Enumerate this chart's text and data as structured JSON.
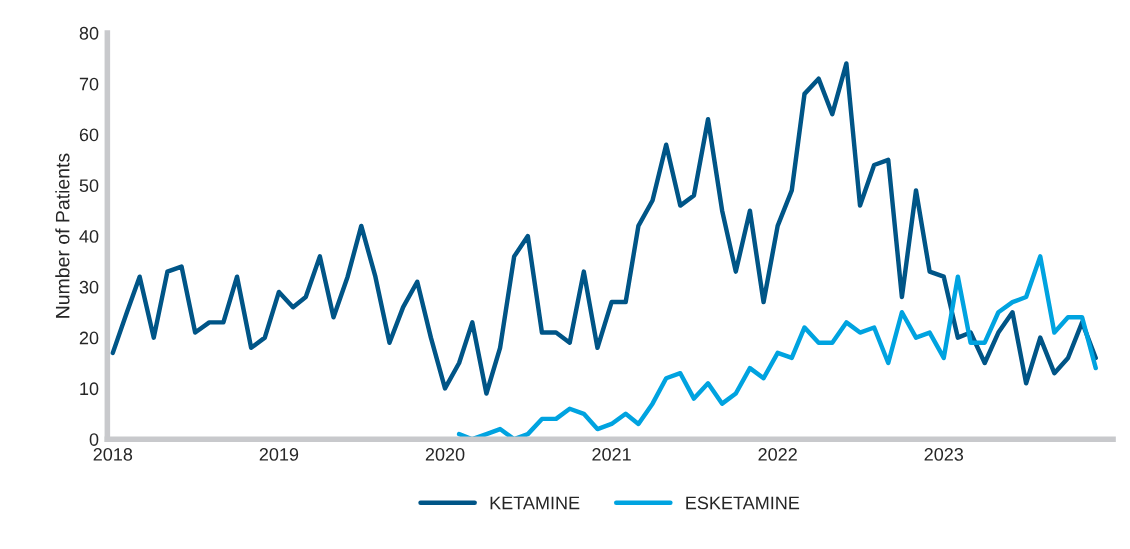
{
  "chart_data": {
    "type": "line",
    "ylabel": "Number of Patients",
    "x": [
      "2018-01",
      "2018-02",
      "2018-03",
      "2018-04",
      "2018-05",
      "2018-06",
      "2018-07",
      "2018-08",
      "2018-09",
      "2018-10",
      "2018-11",
      "2018-12",
      "2019-01",
      "2019-02",
      "2019-03",
      "2019-04",
      "2019-05",
      "2019-06",
      "2019-07",
      "2019-08",
      "2019-09",
      "2019-10",
      "2019-11",
      "2019-12",
      "2020-01",
      "2020-02",
      "2020-03",
      "2020-04",
      "2020-05",
      "2020-06",
      "2020-07",
      "2020-08",
      "2020-09",
      "2020-10",
      "2020-11",
      "2020-12",
      "2021-01",
      "2021-02",
      "2021-03",
      "2021-04",
      "2021-05",
      "2021-06",
      "2021-07",
      "2021-08",
      "2021-09",
      "2021-10",
      "2021-11",
      "2021-12",
      "2022-01",
      "2022-02",
      "2022-03",
      "2022-04",
      "2022-05",
      "2022-06",
      "2022-07",
      "2022-08",
      "2022-09",
      "2022-10",
      "2022-11",
      "2022-12",
      "2023-01",
      "2023-02",
      "2023-03",
      "2023-04",
      "2023-05",
      "2023-06",
      "2023-07",
      "2023-08",
      "2023-09",
      "2023-10",
      "2023-11",
      "2023-12"
    ],
    "series": [
      {
        "name": "KETAMINE",
        "color": "#005587",
        "values": [
          17,
          25,
          32,
          20,
          33,
          34,
          21,
          23,
          23,
          32,
          18,
          20,
          29,
          26,
          28,
          36,
          24,
          32,
          42,
          32,
          19,
          26,
          31,
          20,
          10,
          15,
          23,
          9,
          18,
          36,
          40,
          21,
          21,
          19,
          33,
          18,
          27,
          27,
          42,
          47,
          58,
          46,
          48,
          63,
          45,
          33,
          45,
          27,
          42,
          49,
          68,
          71,
          64,
          74,
          46,
          54,
          55,
          28,
          49,
          33,
          32,
          20,
          21,
          15,
          21,
          25,
          11,
          20,
          13,
          16,
          23,
          16
        ]
      },
      {
        "name": "ESKETAMINE",
        "color": "#00a3e0",
        "x": [
          "2020-02",
          "2020-03",
          "2020-04",
          "2020-05",
          "2020-06",
          "2020-07",
          "2020-08",
          "2020-09",
          "2020-10",
          "2020-11",
          "2020-12",
          "2021-01",
          "2021-02",
          "2021-03",
          "2021-04",
          "2021-05",
          "2021-06",
          "2021-07",
          "2021-08",
          "2021-09",
          "2021-10",
          "2021-11",
          "2021-12",
          "2022-01",
          "2022-02",
          "2022-03",
          "2022-04",
          "2022-05",
          "2022-06",
          "2022-07",
          "2022-08",
          "2022-09",
          "2022-10",
          "2022-11",
          "2022-12",
          "2023-01",
          "2023-02",
          "2023-03",
          "2023-04",
          "2023-05",
          "2023-06",
          "2023-07",
          "2023-08",
          "2023-09",
          "2023-10",
          "2023-11",
          "2023-12"
        ],
        "values": [
          1,
          0,
          1,
          2,
          0,
          1,
          4,
          4,
          6,
          5,
          2,
          3,
          5,
          3,
          7,
          12,
          13,
          8,
          11,
          7,
          9,
          14,
          12,
          17,
          16,
          22,
          19,
          19,
          23,
          21,
          22,
          15,
          25,
          20,
          21,
          16,
          32,
          19,
          19,
          25,
          27,
          28,
          36,
          21,
          24,
          24,
          14
        ]
      }
    ],
    "xlim": [
      "2017-12-20",
      "2024-01-08"
    ],
    "xticks": [
      {
        "value": "2018-01-01",
        "label": "2018"
      },
      {
        "value": "2019-01-01",
        "label": "2019"
      },
      {
        "value": "2020-01-01",
        "label": "2020"
      },
      {
        "value": "2021-01-01",
        "label": "2021"
      },
      {
        "value": "2022-01-01",
        "label": "2022"
      },
      {
        "value": "2023-01-01",
        "label": "2023"
      }
    ],
    "ylim": [
      0,
      80
    ],
    "yticks": [
      0,
      10,
      20,
      30,
      40,
      50,
      60,
      70,
      80
    ],
    "grid": false,
    "legend": "bottom",
    "marker": "none",
    "line_style": "solid"
  }
}
